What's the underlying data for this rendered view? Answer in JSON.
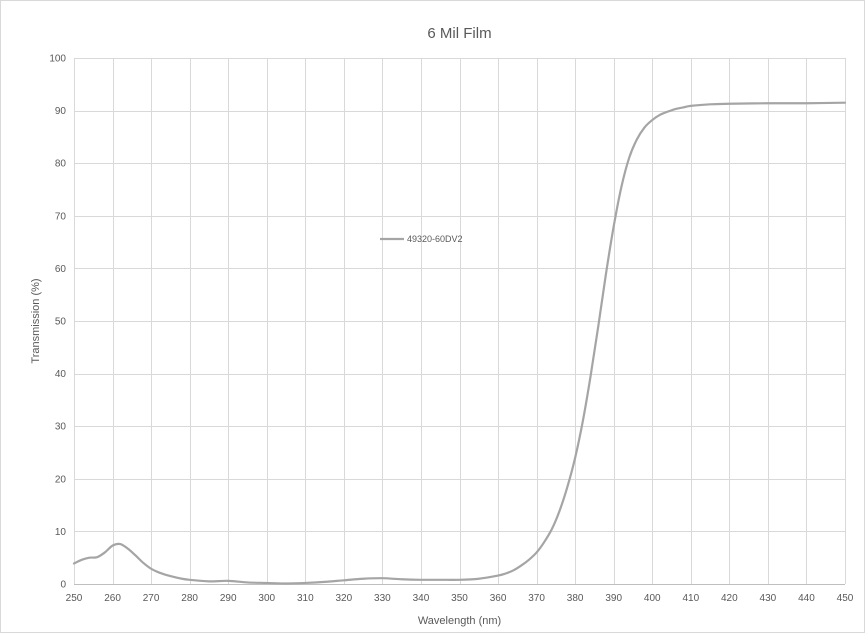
{
  "chart_data": {
    "type": "line",
    "title": "6 Mil Film",
    "xlabel": "Wavelength (nm)",
    "ylabel": "Transmission (%)",
    "xlim": [
      250,
      450
    ],
    "ylim": [
      0,
      100
    ],
    "x_ticks": [
      250,
      260,
      270,
      280,
      290,
      300,
      310,
      320,
      330,
      340,
      350,
      360,
      370,
      380,
      390,
      400,
      410,
      420,
      430,
      440,
      450
    ],
    "y_ticks": [
      0,
      10,
      20,
      30,
      40,
      50,
      60,
      70,
      80,
      90,
      100
    ],
    "grid": true,
    "legend_position": "upper-middle inside plot",
    "series": [
      {
        "name": "49320-60DV2",
        "color": "#a5a5a5",
        "x": [
          250,
          252,
          254,
          256,
          258,
          260,
          262,
          264,
          266,
          268,
          270,
          272,
          275,
          278,
          280,
          285,
          290,
          295,
          300,
          305,
          310,
          315,
          320,
          325,
          330,
          335,
          340,
          345,
          350,
          355,
          360,
          362,
          364,
          366,
          368,
          370,
          372,
          374,
          376,
          378,
          380,
          382,
          384,
          386,
          388,
          390,
          392,
          394,
          396,
          398,
          400,
          402,
          404,
          406,
          408,
          410,
          415,
          420,
          430,
          440,
          450
        ],
        "y": [
          3.9,
          4.6,
          5.0,
          5.1,
          6.0,
          7.3,
          7.6,
          6.7,
          5.4,
          4.0,
          2.9,
          2.2,
          1.5,
          1.0,
          0.8,
          0.5,
          0.6,
          0.3,
          0.2,
          0.1,
          0.2,
          0.4,
          0.7,
          1.0,
          1.1,
          0.9,
          0.8,
          0.8,
          0.8,
          1.0,
          1.6,
          2.0,
          2.6,
          3.5,
          4.6,
          6.0,
          8.0,
          10.5,
          14.0,
          18.5,
          24.0,
          31.0,
          39.5,
          49.0,
          59.0,
          68.0,
          75.5,
          81.0,
          84.5,
          86.8,
          88.2,
          89.2,
          89.8,
          90.3,
          90.6,
          90.9,
          91.2,
          91.3,
          91.4,
          91.4,
          91.5
        ]
      }
    ]
  }
}
